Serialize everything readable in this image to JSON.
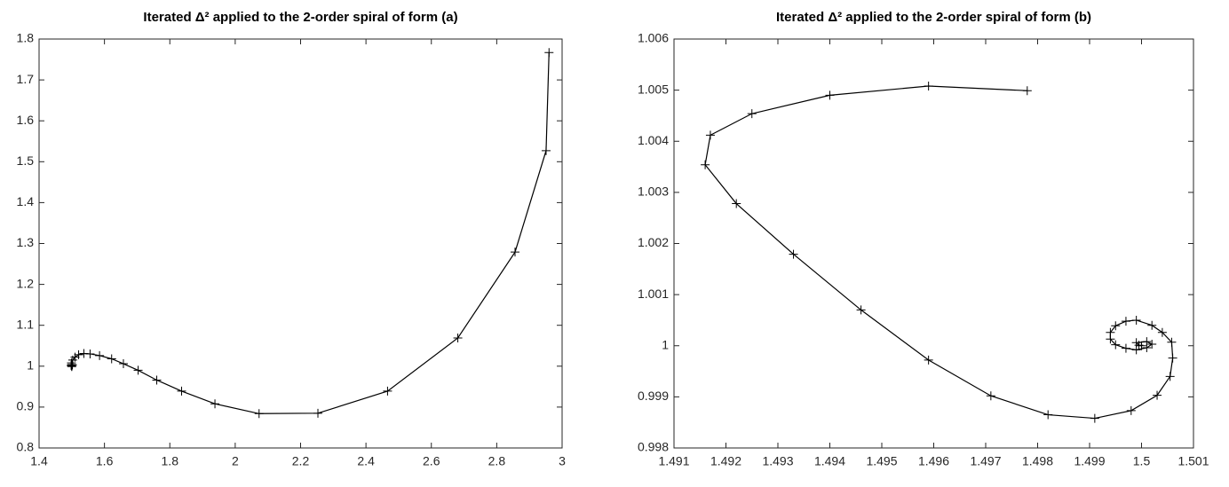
{
  "chart_data": [
    {
      "type": "line",
      "title": "Iterated Δ² applied to the 2-order spiral of form (a)",
      "color": "#000000",
      "marker": "+",
      "x": [
        2.96,
        2.951,
        2.856,
        2.681,
        2.466,
        2.253,
        2.073,
        1.938,
        1.836,
        1.76,
        1.703,
        1.658,
        1.622,
        1.585,
        1.556,
        1.537,
        1.521,
        1.51,
        1.503,
        1.499,
        1.498,
        1.5,
        1.502,
        1.5,
        1.5
      ],
      "values": [
        1.767,
        1.527,
        1.279,
        1.069,
        0.939,
        0.885,
        0.884,
        0.908,
        0.939,
        0.966,
        0.99,
        1.006,
        1.018,
        1.026,
        1.03,
        1.031,
        1.028,
        1.022,
        1.015,
        1.008,
        1.002,
        0.999,
        1.003,
        1.004,
        1.0
      ],
      "xlim": [
        1.4,
        3
      ],
      "xticks": [
        1.4,
        1.6,
        1.8,
        2,
        2.2,
        2.4,
        2.6,
        2.8,
        3
      ],
      "ylim": [
        0.8,
        1.8
      ],
      "yticks": [
        0.8,
        0.9,
        1,
        1.1,
        1.2,
        1.3,
        1.4,
        1.5,
        1.6,
        1.7,
        1.8
      ]
    },
    {
      "type": "line",
      "title": "Iterated Δ² applied to the 2-order spiral of form (b)",
      "color": "#000000",
      "marker": "+",
      "x": [
        1.4978,
        1.4959,
        1.494,
        1.4925,
        1.4917,
        1.4916,
        1.4922,
        1.4933,
        1.4946,
        1.4959,
        1.4971,
        1.4982,
        1.4991,
        1.4998,
        1.5003,
        1.50055,
        1.5006,
        1.50058,
        1.5004,
        1.5002,
        1.4999,
        1.4997,
        1.4995,
        1.4994,
        1.4994,
        1.4995,
        1.4997,
        1.4999,
        1.5001,
        1.5002,
        1.5001,
        1.4999,
        1.49995,
        1.5
      ],
      "values": [
        1.00499,
        1.00508,
        1.0049,
        1.00454,
        1.00412,
        1.00354,
        1.00278,
        1.00179,
        1.0007,
        0.99972,
        0.99902,
        0.99865,
        0.99858,
        0.99873,
        0.99903,
        0.9994,
        0.99976,
        1.00007,
        1.00026,
        1.0004,
        1.0005,
        1.00048,
        1.00039,
        1.00026,
        1.00013,
        1.00002,
        0.99995,
        0.99992,
        0.99996,
        1.00003,
        1.00008,
        1.00006,
        1.00001,
        1.0
      ],
      "xlim": [
        1.491,
        1.501
      ],
      "xticks": [
        1.491,
        1.492,
        1.493,
        1.494,
        1.495,
        1.496,
        1.497,
        1.498,
        1.499,
        1.5,
        1.501
      ],
      "ylim": [
        0.998,
        1.006
      ],
      "yticks": [
        0.998,
        0.999,
        1,
        1.001,
        1.002,
        1.003,
        1.004,
        1.005,
        1.006
      ]
    }
  ]
}
